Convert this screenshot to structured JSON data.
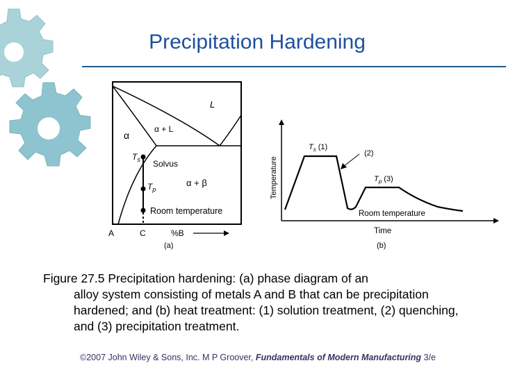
{
  "slide": {
    "title": "Precipitation Hardening",
    "caption_first": "Figure 27.5  Precipitation hardening: (a) phase diagram of an",
    "caption_rest": "alloy system consisting of metals A and B that can be precipitation hardened; and (b) heat treatment: (1) solution treatment, (2) quenching, and (3) precipitation treatment.",
    "footer_pre": "©2007 John Wiley & Sons, Inc.  M P Groover, ",
    "footer_book": "Fundamentals of Modern Manufacturing",
    "footer_post": " 3/e"
  },
  "diagram_a": {
    "label_L": "L",
    "label_alpha_L": "α + L",
    "label_alpha": "α",
    "label_Ts": "T",
    "label_Ts_sub": "s",
    "label_solvus": "Solvus",
    "label_alpha_beta": "α + β",
    "label_Tp": "T",
    "label_Tp_sub": "p",
    "label_room": "Room temperature",
    "axis_A": "A",
    "axis_C": "C",
    "axis_B": "%B",
    "caption": "(a)"
  },
  "diagram_b": {
    "ylabel": "Temperature",
    "xlabel": "Time",
    "label_Ts": "T",
    "label_Ts_sub": "s",
    "label_Ts_num": "(1)",
    "label_quench": "(2)",
    "label_Tp": "T",
    "label_Tp_sub": "p",
    "label_Tp_num": "(3)",
    "label_room": "Room temperature",
    "caption": "(b)"
  },
  "colors": {
    "title": "#1f4fa0",
    "rule": "#1f5a85",
    "gear_light": "#a8d4dc",
    "gear_dark": "#7fb8c4"
  }
}
